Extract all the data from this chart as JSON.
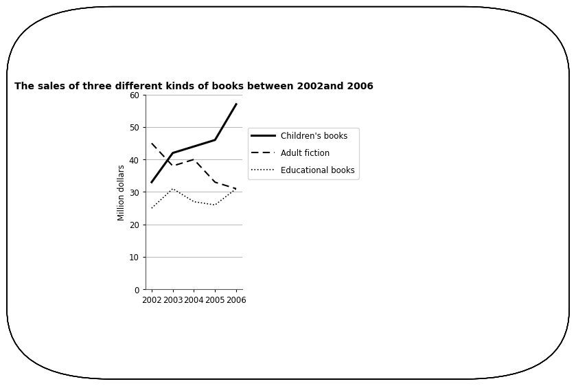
{
  "title": "The sales of three different kinds of books between 2002​and 2006",
  "years": [
    2002,
    2003,
    2004,
    2005,
    2006
  ],
  "children_books": [
    33,
    42,
    44,
    46,
    57
  ],
  "adult_fiction": [
    45,
    38,
    40,
    33,
    31
  ],
  "educational_books": [
    25,
    31,
    27,
    26,
    31
  ],
  "ylabel": "Million dollars",
  "ylim": [
    0,
    60
  ],
  "yticks": [
    0,
    10,
    20,
    30,
    40,
    50,
    60
  ],
  "background_color": "#ffffff",
  "line_color": "#000000",
  "title_fontsize": 10,
  "label_fontsize": 8.5,
  "tick_fontsize": 8.5,
  "legend_labels": [
    "Children's books",
    "Adult fiction",
    "Educational books"
  ]
}
